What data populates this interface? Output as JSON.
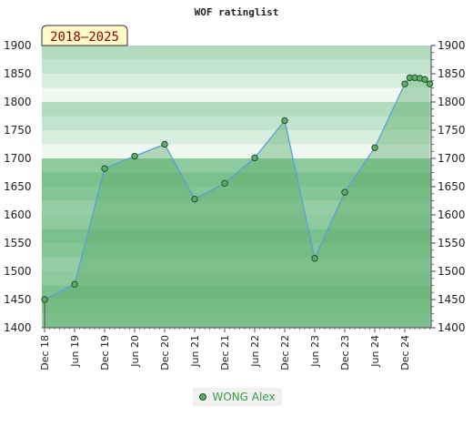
{
  "chart_data": {
    "type": "area",
    "title": "WOF ratinglist",
    "period_badge": "2018–2025",
    "ylim": [
      1400,
      1900
    ],
    "yticks": [
      1400,
      1450,
      1500,
      1550,
      1600,
      1650,
      1700,
      1750,
      1800,
      1850,
      1900
    ],
    "xticks": [
      "Dec 18",
      "Jun 19",
      "Dec 19",
      "Jun 20",
      "Dec 20",
      "Jun 21",
      "Dec 21",
      "Jun 22",
      "Dec 22",
      "Jun 23",
      "Dec 23",
      "Jun 24",
      "Dec 24"
    ],
    "series": [
      {
        "name": "WONG Alex",
        "color": "#5fae6d",
        "line_color": "#5aa0d8",
        "points": [
          {
            "x": "Dec 18",
            "y": 1450
          },
          {
            "x": "Jun 19",
            "y": 1477
          },
          {
            "x": "Dec 19",
            "y": 1682
          },
          {
            "x": "Jun 20",
            "y": 1704
          },
          {
            "x": "Dec 20",
            "y": 1725
          },
          {
            "x": "Jun 21",
            "y": 1628
          },
          {
            "x": "Dec 21",
            "y": 1656
          },
          {
            "x": "Jun 22",
            "y": 1701
          },
          {
            "x": "Dec 22",
            "y": 1767
          },
          {
            "x": "Jun 23",
            "y": 1523
          },
          {
            "x": "Dec 23",
            "y": 1640
          },
          {
            "x": "Jun 24",
            "y": 1719
          },
          {
            "x": "Dec 24",
            "y": 1832
          },
          {
            "x": "Jan 25",
            "y": 1843
          },
          {
            "x": "Feb 25",
            "y": 1843
          },
          {
            "x": "Mar 25",
            "y": 1842
          },
          {
            "x": "Apr 25",
            "y": 1840
          },
          {
            "x": "May 25",
            "y": 1832
          }
        ]
      }
    ],
    "legend_position": "bottom-center",
    "grid": true
  }
}
